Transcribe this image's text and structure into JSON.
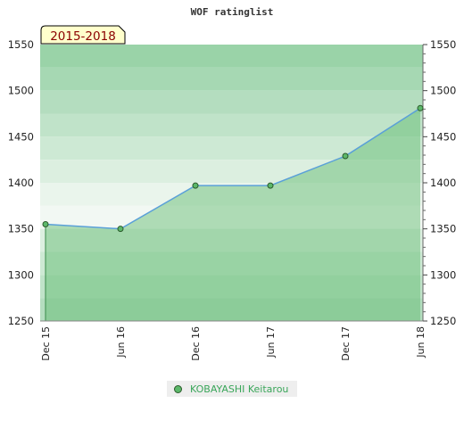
{
  "chart_data": {
    "type": "area",
    "title": "WOF ratinglist",
    "period_label": "2015-2018",
    "categories": [
      "Dec 15",
      "Jun 16",
      "Dec 16",
      "Jun 17",
      "Dec 17",
      "Jun 18"
    ],
    "series": [
      {
        "name": "KOBAYASHI Keitarou",
        "values": [
          1355,
          1350,
          1397,
          1397,
          1429,
          1481
        ]
      }
    ],
    "ylim": [
      1250,
      1550
    ],
    "y_ticks": [
      1250,
      1300,
      1350,
      1400,
      1450,
      1500,
      1550
    ],
    "y_axis_both_sides": true,
    "legend_position": "bottom",
    "grid": true
  },
  "colors": {
    "line": "#5aa0d8",
    "marker": "#5cb86a",
    "marker_border": "#2a5a2a",
    "area_fill": "#5cb86a",
    "band_top": "#b4dcc0",
    "band_bottom": "#f2f8f3",
    "period_box": "#ffffcc",
    "period_text": "#8b0000",
    "legend_text": "#3aa65a"
  }
}
